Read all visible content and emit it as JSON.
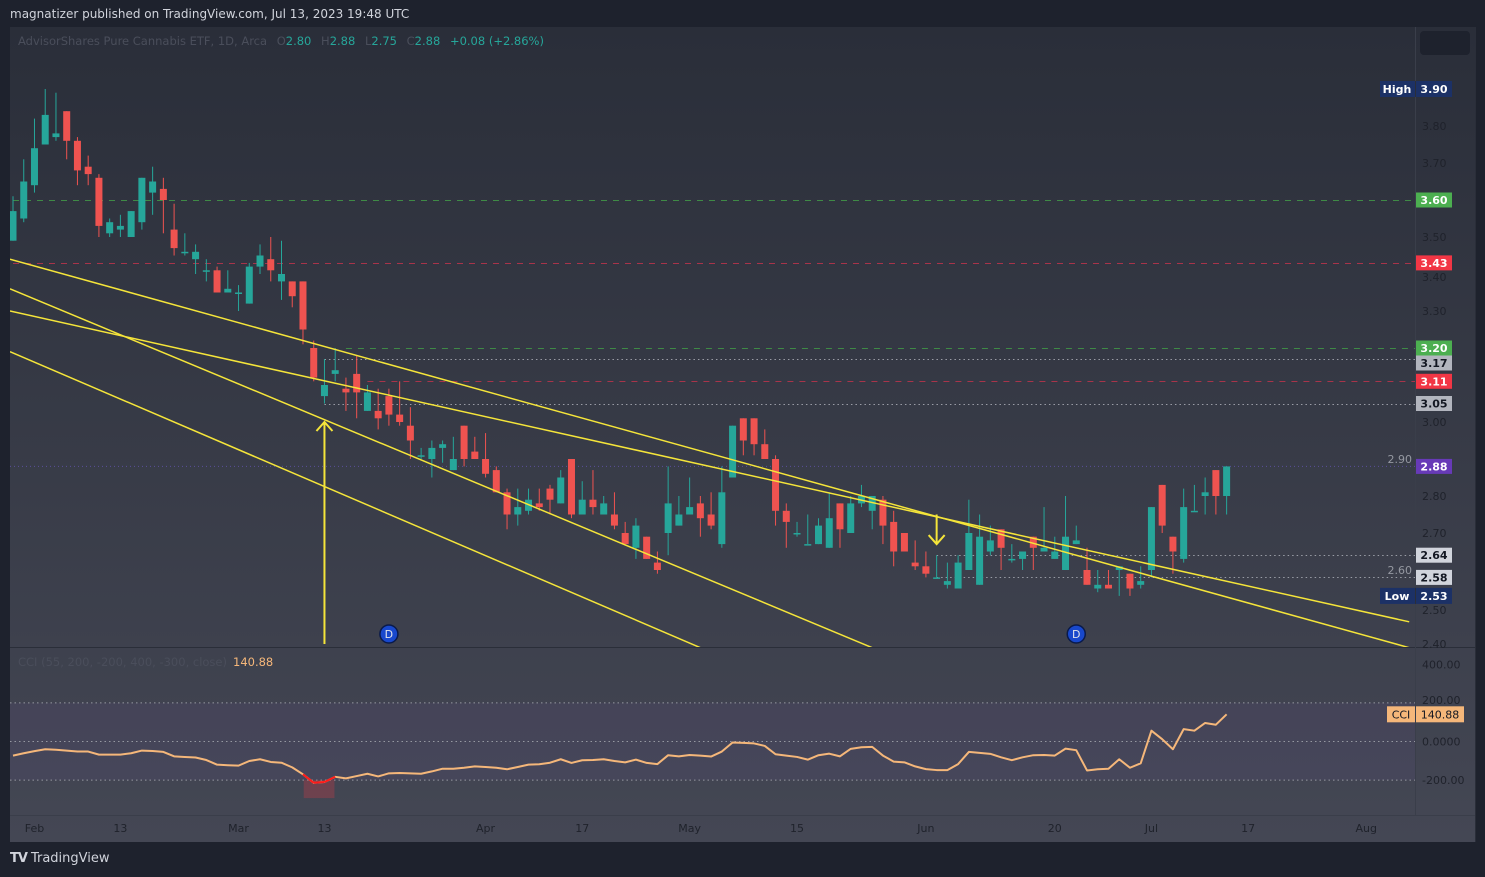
{
  "header": {
    "published": "magnatizer published on TradingView.com, Jul 13, 2023 19:48 UTC"
  },
  "legend": {
    "symbol": "AdvisorShares Pure Cannabis ETF, 1D, Arca",
    "o_label": "O",
    "open": "2.80",
    "h_label": "H",
    "high": "2.88",
    "l_label": "L",
    "low": "2.75",
    "c_label": "C",
    "close": "2.88",
    "change": "+0.08 (+2.86%)"
  },
  "cci_legend": {
    "title": "CCI (55, 200, -200, 400, -300, close)",
    "value": "140.88"
  },
  "footer": {
    "brand": "TradingView"
  },
  "colors": {
    "up": "#26a69a",
    "down": "#ef5350",
    "trendline": "#f5e53a",
    "cci_line": "#f5b77a",
    "last_price": "#673ab7"
  },
  "chart_data": [
    {
      "type": "candlestick",
      "title": "AdvisorShares Pure Cannabis ETF, 1D, Arca",
      "ylim": [
        2.4,
        3.9
      ],
      "y_ticks": [
        "3.80",
        "3.70",
        "3.50",
        "3.40",
        "3.30",
        "3.00",
        "2.90",
        "2.80",
        "2.70",
        "2.60",
        "2.50",
        "2.40"
      ],
      "x_ticks": [
        "Feb",
        "13",
        "Mar",
        "13",
        "Apr",
        "17",
        "May",
        "15",
        "Jun",
        "20",
        "Jul",
        "17",
        "Aug"
      ],
      "x_tick_dates": [
        "2023-02-01",
        "2023-02-13",
        "2023-03-01",
        "2023-03-13",
        "2023-04-03",
        "2023-04-17",
        "2023-05-01",
        "2023-05-15",
        "2023-06-01",
        "2023-06-20",
        "2023-07-03",
        "2023-07-17",
        "2023-08-01"
      ],
      "candle_fields": [
        "date",
        "open",
        "high",
        "low",
        "close"
      ],
      "candles": [
        [
          "2023-01-30",
          3.49,
          3.61,
          3.49,
          3.57
        ],
        [
          "2023-01-31",
          3.55,
          3.71,
          3.54,
          3.65
        ],
        [
          "2023-02-01",
          3.64,
          3.82,
          3.62,
          3.74
        ],
        [
          "2023-02-02",
          3.75,
          3.9,
          3.75,
          3.83
        ],
        [
          "2023-02-03",
          3.77,
          3.89,
          3.76,
          3.78
        ],
        [
          "2023-02-06",
          3.84,
          3.84,
          3.71,
          3.76
        ],
        [
          "2023-02-07",
          3.76,
          3.77,
          3.64,
          3.68
        ],
        [
          "2023-02-08",
          3.69,
          3.72,
          3.64,
          3.67
        ],
        [
          "2023-02-09",
          3.66,
          3.67,
          3.5,
          3.53
        ],
        [
          "2023-02-10",
          3.51,
          3.55,
          3.5,
          3.54
        ],
        [
          "2023-02-13",
          3.52,
          3.56,
          3.5,
          3.53
        ],
        [
          "2023-02-14",
          3.5,
          3.57,
          3.5,
          3.57
        ],
        [
          "2023-02-15",
          3.54,
          3.66,
          3.52,
          3.66
        ],
        [
          "2023-02-16",
          3.62,
          3.69,
          3.56,
          3.65
        ],
        [
          "2023-02-17",
          3.63,
          3.66,
          3.51,
          3.6
        ],
        [
          "2023-02-21",
          3.52,
          3.59,
          3.45,
          3.47
        ],
        [
          "2023-02-22",
          3.46,
          3.51,
          3.45,
          3.46
        ],
        [
          "2023-02-23",
          3.44,
          3.48,
          3.4,
          3.46
        ],
        [
          "2023-02-24",
          3.41,
          3.44,
          3.38,
          3.41
        ],
        [
          "2023-02-27",
          3.41,
          3.42,
          3.35,
          3.35
        ],
        [
          "2023-02-28",
          3.35,
          3.41,
          3.35,
          3.36
        ],
        [
          "2023-03-01",
          3.35,
          3.37,
          3.3,
          3.35
        ],
        [
          "2023-03-02",
          3.32,
          3.43,
          3.32,
          3.42
        ],
        [
          "2023-03-03",
          3.42,
          3.48,
          3.4,
          3.45
        ],
        [
          "2023-03-06",
          3.44,
          3.5,
          3.38,
          3.41
        ],
        [
          "2023-03-07",
          3.38,
          3.49,
          3.33,
          3.4
        ],
        [
          "2023-03-08",
          3.38,
          3.38,
          3.31,
          3.34
        ],
        [
          "2023-03-09",
          3.38,
          3.38,
          3.21,
          3.25
        ],
        [
          "2023-03-10",
          3.2,
          3.22,
          3.11,
          3.12
        ],
        [
          "2023-03-13",
          3.07,
          3.17,
          3.05,
          3.1
        ],
        [
          "2023-03-14",
          3.13,
          3.2,
          3.11,
          3.14
        ],
        [
          "2023-03-15",
          3.09,
          3.12,
          3.03,
          3.08
        ],
        [
          "2023-03-16",
          3.13,
          3.18,
          3.01,
          3.08
        ],
        [
          "2023-03-17",
          3.03,
          3.1,
          3.03,
          3.08
        ],
        [
          "2023-03-20",
          3.03,
          3.09,
          2.98,
          3.01
        ],
        [
          "2023-03-21",
          3.07,
          3.09,
          2.99,
          3.02
        ],
        [
          "2023-03-22",
          3.02,
          3.11,
          2.99,
          3.0
        ],
        [
          "2023-03-23",
          2.99,
          3.04,
          2.9,
          2.95
        ],
        [
          "2023-03-24",
          2.91,
          2.93,
          2.9,
          2.91
        ],
        [
          "2023-03-27",
          2.9,
          2.95,
          2.85,
          2.93
        ],
        [
          "2023-03-28",
          2.93,
          2.95,
          2.89,
          2.94
        ],
        [
          "2023-03-29",
          2.87,
          2.96,
          2.87,
          2.9
        ],
        [
          "2023-03-30",
          2.99,
          2.99,
          2.88,
          2.9
        ],
        [
          "2023-03-31",
          2.92,
          2.96,
          2.9,
          2.9
        ],
        [
          "2023-04-03",
          2.9,
          2.97,
          2.85,
          2.86
        ],
        [
          "2023-04-04",
          2.87,
          2.88,
          2.81,
          2.81
        ],
        [
          "2023-04-05",
          2.81,
          2.82,
          2.71,
          2.75
        ],
        [
          "2023-04-06",
          2.75,
          2.82,
          2.72,
          2.77
        ],
        [
          "2023-04-10",
          2.76,
          2.82,
          2.75,
          2.79
        ],
        [
          "2023-04-11",
          2.78,
          2.82,
          2.76,
          2.77
        ],
        [
          "2023-04-12",
          2.82,
          2.83,
          2.75,
          2.79
        ],
        [
          "2023-04-13",
          2.78,
          2.87,
          2.78,
          2.85
        ],
        [
          "2023-04-14",
          2.9,
          2.9,
          2.74,
          2.75
        ],
        [
          "2023-04-17",
          2.75,
          2.84,
          2.75,
          2.79
        ],
        [
          "2023-04-18",
          2.79,
          2.87,
          2.75,
          2.77
        ],
        [
          "2023-04-19",
          2.75,
          2.8,
          2.75,
          2.78
        ],
        [
          "2023-04-20",
          2.75,
          2.81,
          2.71,
          2.72
        ],
        [
          "2023-04-21",
          2.7,
          2.73,
          2.67,
          2.67
        ],
        [
          "2023-04-24",
          2.66,
          2.74,
          2.63,
          2.72
        ],
        [
          "2023-04-25",
          2.69,
          2.69,
          2.63,
          2.63
        ],
        [
          "2023-04-26",
          2.62,
          2.65,
          2.59,
          2.6
        ],
        [
          "2023-04-27",
          2.7,
          2.88,
          2.64,
          2.78
        ],
        [
          "2023-04-28",
          2.72,
          2.8,
          2.72,
          2.75
        ],
        [
          "2023-05-01",
          2.75,
          2.85,
          2.75,
          2.77
        ],
        [
          "2023-05-02",
          2.78,
          2.8,
          2.69,
          2.74
        ],
        [
          "2023-05-03",
          2.75,
          2.81,
          2.71,
          2.72
        ],
        [
          "2023-05-04",
          2.67,
          2.88,
          2.66,
          2.81
        ],
        [
          "2023-05-05",
          2.85,
          2.99,
          2.85,
          2.99
        ],
        [
          "2023-05-08",
          3.01,
          3.01,
          2.91,
          2.95
        ],
        [
          "2023-05-09",
          3.01,
          3.01,
          2.91,
          2.94
        ],
        [
          "2023-05-10",
          2.94,
          2.98,
          2.9,
          2.9
        ],
        [
          "2023-05-11",
          2.9,
          2.91,
          2.72,
          2.76
        ],
        [
          "2023-05-12",
          2.76,
          2.78,
          2.66,
          2.73
        ],
        [
          "2023-05-15",
          2.7,
          2.73,
          2.69,
          2.7
        ],
        [
          "2023-05-16",
          2.67,
          2.75,
          2.67,
          2.67
        ],
        [
          "2023-05-17",
          2.67,
          2.74,
          2.67,
          2.72
        ],
        [
          "2023-05-18",
          2.66,
          2.81,
          2.66,
          2.74
        ],
        [
          "2023-05-19",
          2.78,
          2.78,
          2.66,
          2.71
        ],
        [
          "2023-05-22",
          2.7,
          2.8,
          2.7,
          2.78
        ],
        [
          "2023-05-23",
          2.78,
          2.83,
          2.77,
          2.8
        ],
        [
          "2023-05-24",
          2.76,
          2.8,
          2.71,
          2.8
        ],
        [
          "2023-05-25",
          2.79,
          2.8,
          2.67,
          2.72
        ],
        [
          "2023-05-26",
          2.73,
          2.76,
          2.61,
          2.65
        ],
        [
          "2023-05-30",
          2.7,
          2.7,
          2.65,
          2.65
        ],
        [
          "2023-05-31",
          2.62,
          2.68,
          2.6,
          2.61
        ],
        [
          "2023-06-01",
          2.61,
          2.65,
          2.58,
          2.59
        ],
        [
          "2023-06-02",
          2.58,
          2.64,
          2.58,
          2.58
        ],
        [
          "2023-06-05",
          2.56,
          2.62,
          2.55,
          2.57
        ],
        [
          "2023-06-06",
          2.55,
          2.64,
          2.55,
          2.62
        ],
        [
          "2023-06-07",
          2.6,
          2.79,
          2.6,
          2.7
        ],
        [
          "2023-06-08",
          2.56,
          2.75,
          2.56,
          2.69
        ],
        [
          "2023-06-09",
          2.65,
          2.72,
          2.64,
          2.68
        ],
        [
          "2023-06-12",
          2.71,
          2.71,
          2.6,
          2.66
        ],
        [
          "2023-06-13",
          2.63,
          2.67,
          2.62,
          2.63
        ],
        [
          "2023-06-14",
          2.63,
          2.65,
          2.6,
          2.65
        ],
        [
          "2023-06-15",
          2.69,
          2.69,
          2.6,
          2.66
        ],
        [
          "2023-06-16",
          2.65,
          2.77,
          2.65,
          2.66
        ],
        [
          "2023-06-20",
          2.63,
          2.69,
          2.63,
          2.65
        ],
        [
          "2023-06-21",
          2.6,
          2.8,
          2.6,
          2.69
        ],
        [
          "2023-06-22",
          2.67,
          2.72,
          2.67,
          2.68
        ],
        [
          "2023-06-23",
          2.6,
          2.66,
          2.56,
          2.56
        ],
        [
          "2023-06-26",
          2.55,
          2.6,
          2.54,
          2.56
        ],
        [
          "2023-06-27",
          2.56,
          2.6,
          2.55,
          2.55
        ],
        [
          "2023-06-28",
          2.6,
          2.61,
          2.53,
          2.61
        ],
        [
          "2023-06-29",
          2.59,
          2.59,
          2.53,
          2.55
        ],
        [
          "2023-06-30",
          2.56,
          2.61,
          2.55,
          2.57
        ],
        [
          "2023-07-03",
          2.6,
          2.77,
          2.58,
          2.77
        ],
        [
          "2023-07-05",
          2.83,
          2.83,
          2.7,
          2.72
        ],
        [
          "2023-07-06",
          2.69,
          2.69,
          2.59,
          2.65
        ],
        [
          "2023-07-07",
          2.63,
          2.82,
          2.62,
          2.77
        ],
        [
          "2023-07-10",
          2.76,
          2.83,
          2.76,
          2.76
        ],
        [
          "2023-07-11",
          2.8,
          2.85,
          2.75,
          2.81
        ],
        [
          "2023-07-12",
          2.87,
          2.87,
          2.75,
          2.8
        ],
        [
          "2023-07-13",
          2.8,
          2.88,
          2.75,
          2.88
        ]
      ],
      "high_marker": {
        "label": "High",
        "value": "3.90"
      },
      "low_marker": {
        "label": "Low",
        "value": "2.53"
      },
      "last_price": "2.88",
      "levels": [
        {
          "value": "3.60",
          "style": "dashed",
          "color": "#4caf50",
          "from": "2023-01-30"
        },
        {
          "value": "3.43",
          "style": "dashed",
          "color": "#f23645",
          "from": "2023-01-30"
        },
        {
          "value": "3.20",
          "style": "dashed",
          "color": "#4caf50",
          "from": "2023-03-15"
        },
        {
          "value": "3.17",
          "style": "dotted",
          "color": "#b2b5be",
          "from": "2023-03-13"
        },
        {
          "value": "3.11",
          "style": "dashed",
          "color": "#f23645",
          "from": "2023-03-17"
        },
        {
          "value": "3.05",
          "style": "dotted",
          "color": "#b2b5be",
          "from": "2023-03-13"
        },
        {
          "value": "2.64",
          "style": "dotted",
          "color": "#d1d4dc",
          "from": "2023-06-02"
        },
        {
          "value": "2.58",
          "style": "dotted",
          "color": "#d1d4dc",
          "from": "2023-06-02"
        }
      ],
      "trendlines": [
        {
          "from": [
            "2023-01-30",
            3.44
          ],
          "to": [
            "2023-08-07",
            2.39
          ]
        },
        {
          "from": [
            "2023-01-30",
            3.3
          ],
          "to": [
            "2023-08-07",
            2.46
          ]
        },
        {
          "from": [
            "2023-01-30",
            3.36
          ],
          "to": [
            "2023-05-24",
            2.39
          ]
        },
        {
          "from": [
            "2023-01-30",
            3.19
          ],
          "to": [
            "2023-05-02",
            2.39
          ]
        }
      ],
      "arrows": [
        {
          "direction": "up",
          "date": "2023-03-13",
          "from": 2.4,
          "to": 3.0
        },
        {
          "direction": "down",
          "date": "2023-06-02",
          "from": 2.75,
          "to": 2.67
        }
      ],
      "dividends": [
        {
          "date": "2023-03-21",
          "label": "D"
        },
        {
          "date": "2023-06-22",
          "label": "D"
        }
      ]
    },
    {
      "type": "line",
      "title": "CCI (55, 200, -200, 400, -300, close)",
      "ylim": [
        -300,
        400
      ],
      "y_ticks": [
        "400.00",
        "200.00",
        "0.0000",
        "-200.00"
      ],
      "bands": [
        200,
        0,
        -200
      ],
      "last_label": "CCI",
      "last_value": "140.88",
      "values": [
        -73,
        -61,
        -50,
        -40,
        -43,
        -47,
        -52,
        -52,
        -68,
        -68,
        -68,
        -61,
        -47,
        -49,
        -54,
        -77,
        -80,
        -83,
        -96,
        -120,
        -123,
        -125,
        -101,
        -92,
        -106,
        -110,
        -134,
        -170,
        -214,
        -210,
        -183,
        -191,
        -179,
        -167,
        -181,
        -165,
        -163,
        -165,
        -167,
        -155,
        -141,
        -141,
        -136,
        -129,
        -132,
        -136,
        -144,
        -132,
        -120,
        -118,
        -110,
        -92,
        -111,
        -97,
        -96,
        -92,
        -101,
        -108,
        -94,
        -111,
        -117,
        -71,
        -77,
        -70,
        -73,
        -78,
        -52,
        -5,
        -7,
        -10,
        -23,
        -66,
        -73,
        -80,
        -94,
        -71,
        -63,
        -77,
        -38,
        -30,
        -28,
        -73,
        -104,
        -108,
        -129,
        -143,
        -148,
        -148,
        -117,
        -54,
        -59,
        -64,
        -82,
        -97,
        -82,
        -71,
        -70,
        -73,
        -37,
        -45,
        -150,
        -144,
        -141,
        -92,
        -136,
        -113,
        56,
        12,
        -40,
        64,
        56,
        96,
        87,
        140.88
      ]
    }
  ]
}
